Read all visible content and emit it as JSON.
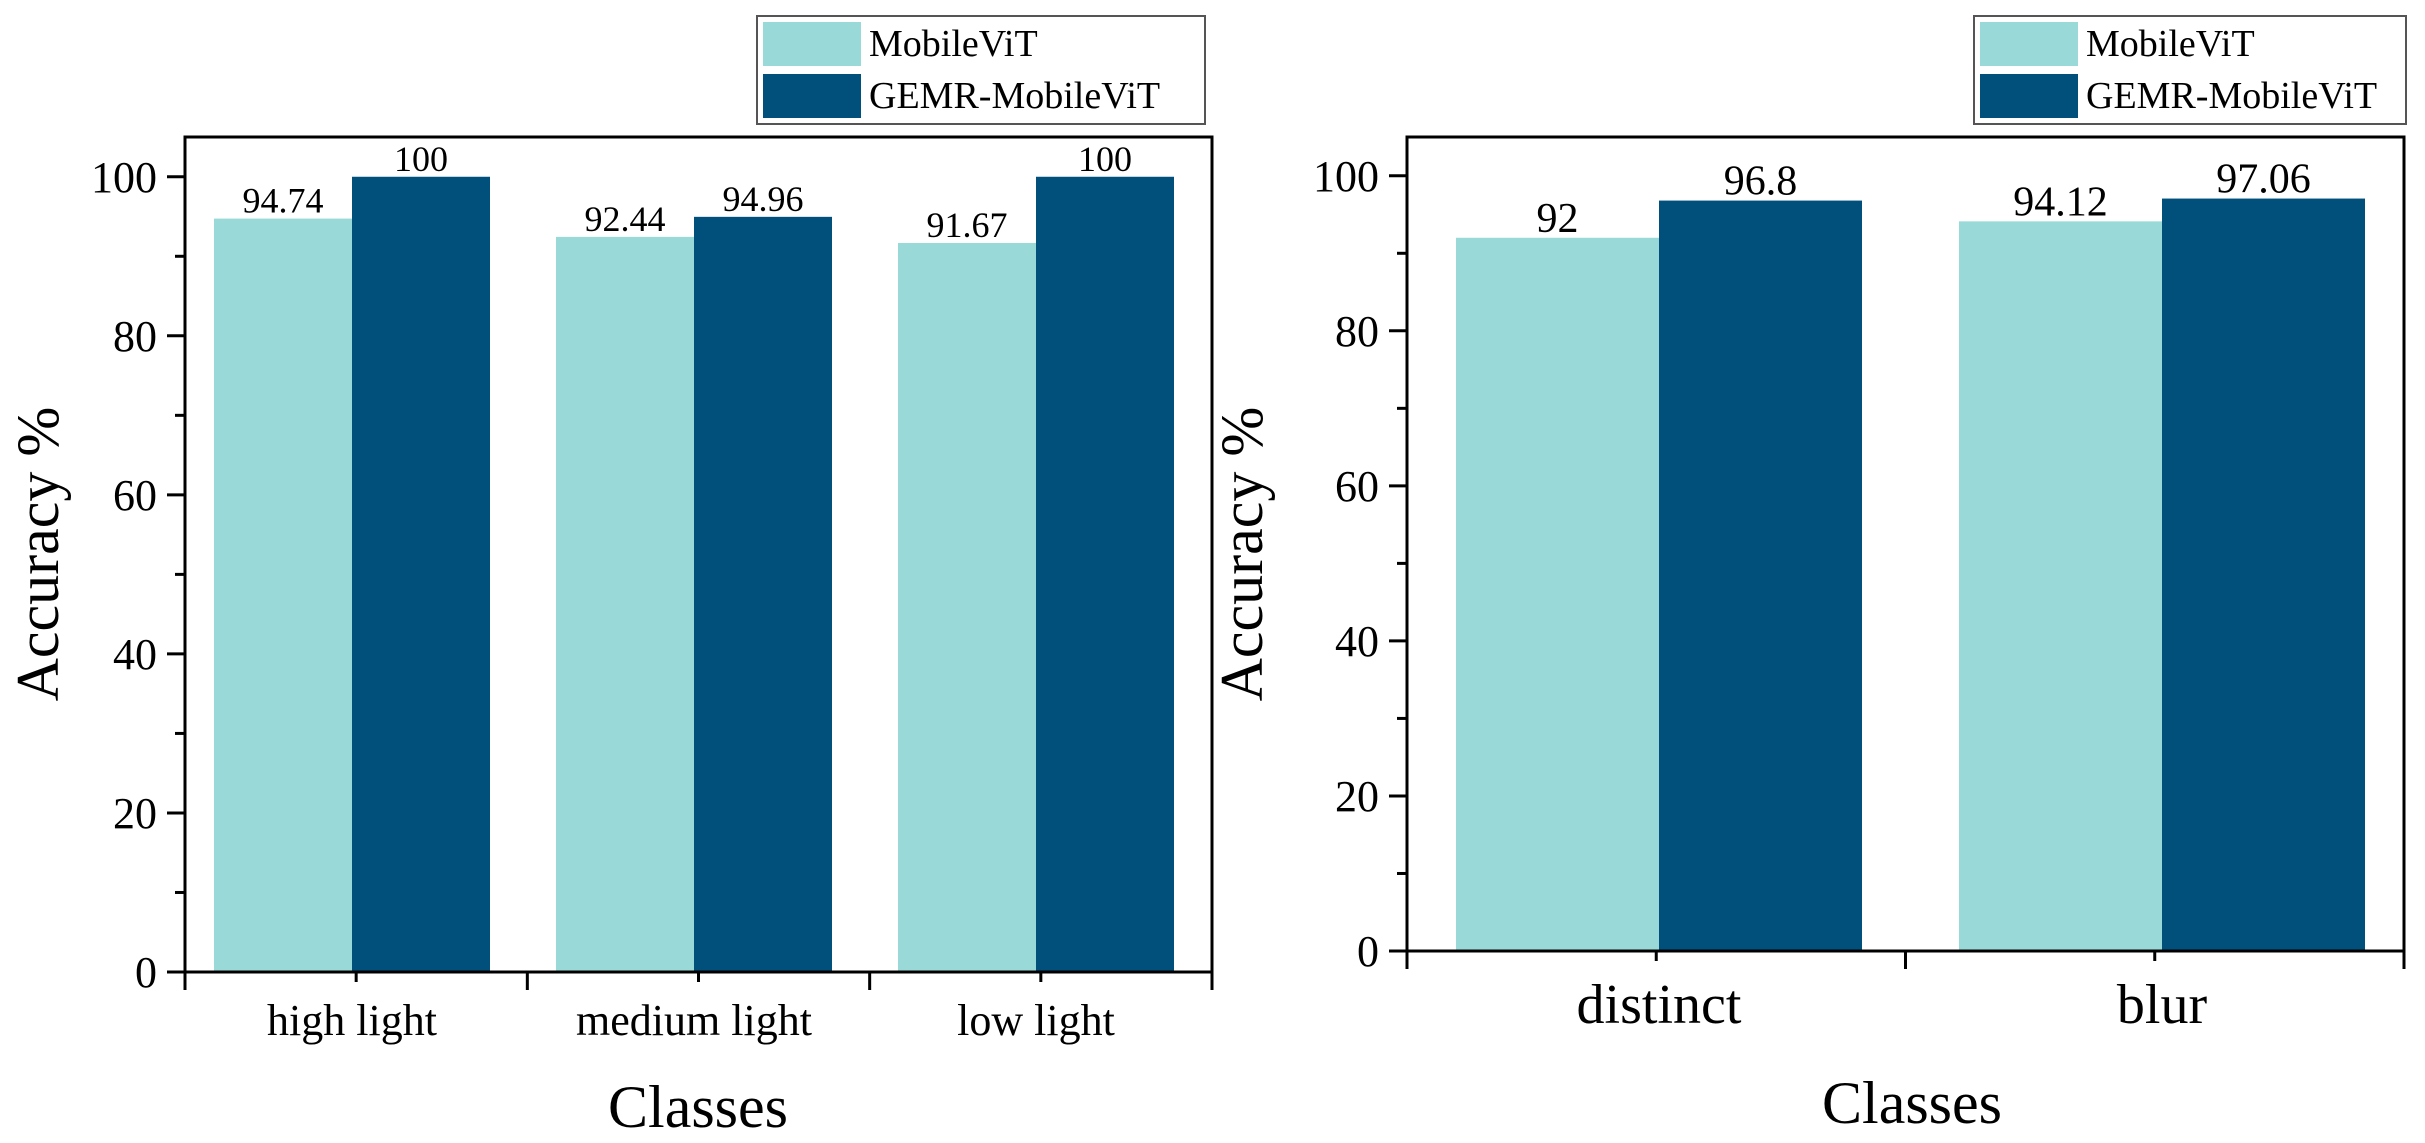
{
  "colors": {
    "series_light": "#99dad8",
    "series_dark": "#00507b",
    "axis": "#000000",
    "legend_border": "#555555"
  },
  "chart_data": [
    {
      "type": "bar",
      "categories": [
        "high light",
        "medium light",
        "low light"
      ],
      "series": [
        {
          "name": "MobileViT",
          "values": [
            94.74,
            92.44,
            91.67
          ],
          "labels": [
            "94.74",
            "92.44",
            "91.67"
          ]
        },
        {
          "name": "GEMR-MobileViT",
          "values": [
            100,
            94.96,
            100
          ],
          "labels": [
            "100",
            "94.96",
            "100"
          ]
        }
      ],
      "xlabel": "Classes",
      "ylabel": "Accuracy %",
      "ylim": [
        0,
        105
      ],
      "yticks": [
        "0",
        "20",
        "40",
        "60",
        "80",
        "100"
      ],
      "legend_position": "top-right, above plot",
      "grid": false
    },
    {
      "type": "bar",
      "categories": [
        "distinct",
        "blur"
      ],
      "series": [
        {
          "name": "MobileViT",
          "values": [
            92,
            94.12
          ],
          "labels": [
            "92",
            "94.12"
          ]
        },
        {
          "name": "GEMR-MobileViT",
          "values": [
            96.8,
            97.06
          ],
          "labels": [
            "96.8",
            "97.06"
          ]
        }
      ],
      "xlabel": "Classes",
      "ylabel": "Accuracy %",
      "ylim": [
        0,
        105
      ],
      "yticks": [
        "0",
        "20",
        "40",
        "60",
        "80",
        "100"
      ],
      "legend_position": "top-right, above plot",
      "grid": false
    }
  ]
}
